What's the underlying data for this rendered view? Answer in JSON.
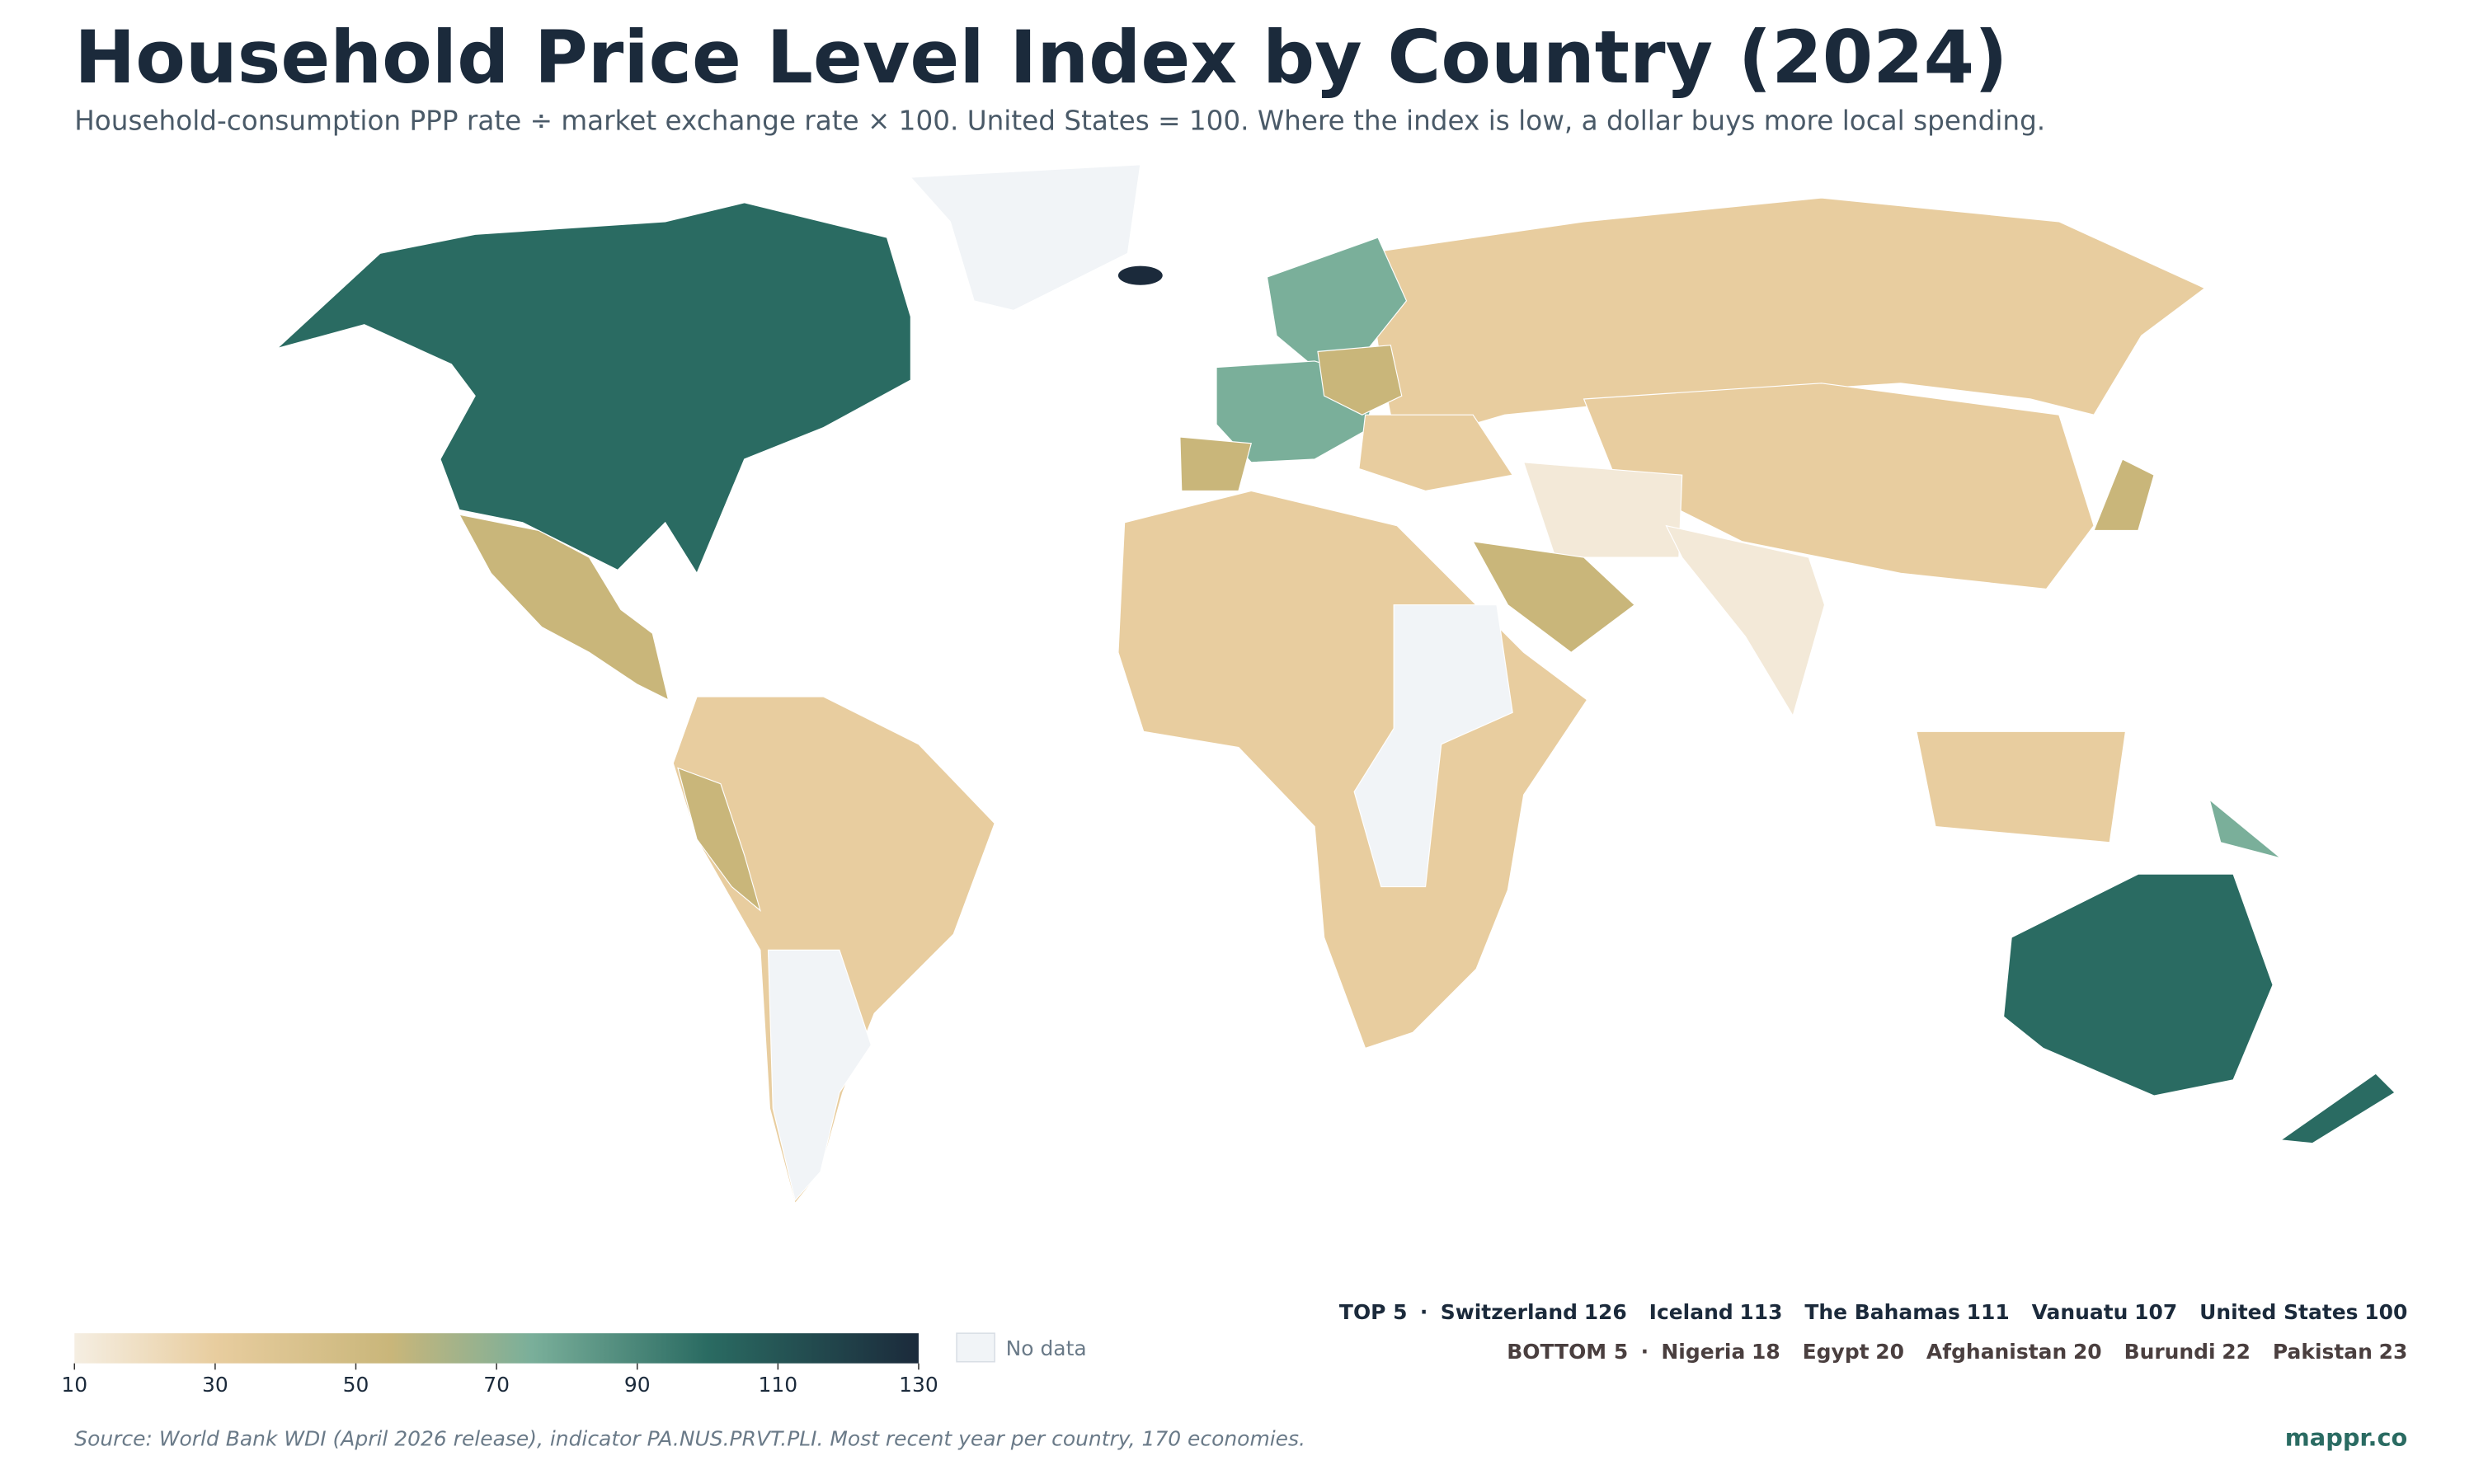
{
  "header": {
    "title": "Household Price Level Index by Country (2024)",
    "subtitle": "Household-consumption PPP rate ÷ market exchange rate × 100. United States = 100. Where the index is low, a dollar buys more local spending."
  },
  "legend": {
    "range": [
      10,
      130
    ],
    "ticks": [
      10,
      30,
      50,
      70,
      90,
      110,
      130
    ],
    "stops": [
      {
        "value": 10,
        "color": "#f5eee2"
      },
      {
        "value": 30,
        "color": "#e8cd9f"
      },
      {
        "value": 55,
        "color": "#c9b67a"
      },
      {
        "value": 75,
        "color": "#7aaf9a"
      },
      {
        "value": 100,
        "color": "#2a6b62"
      },
      {
        "value": 130,
        "color": "#1b2a3b"
      }
    ],
    "no_data": "No data",
    "no_data_color": "#f1f4f7"
  },
  "rankings": {
    "separator": "·",
    "top": {
      "label": "TOP 5",
      "items": [
        {
          "name": "Switzerland",
          "value": 126
        },
        {
          "name": "Iceland",
          "value": 113
        },
        {
          "name": "The Bahamas",
          "value": 111
        },
        {
          "name": "Vanuatu",
          "value": 107
        },
        {
          "name": "United States",
          "value": 100
        }
      ]
    },
    "bottom": {
      "label": "BOTTOM 5",
      "items": [
        {
          "name": "Nigeria",
          "value": 18
        },
        {
          "name": "Egypt",
          "value": 20
        },
        {
          "name": "Afghanistan",
          "value": 20
        },
        {
          "name": "Burundi",
          "value": 22
        },
        {
          "name": "Pakistan",
          "value": 23
        }
      ]
    }
  },
  "footer": {
    "source": "Source: World Bank WDI (April 2026 release), indicator PA.NUS.PRVT.PLI. Most recent year per country, 170 economies.",
    "brand": "mappr.co"
  }
}
